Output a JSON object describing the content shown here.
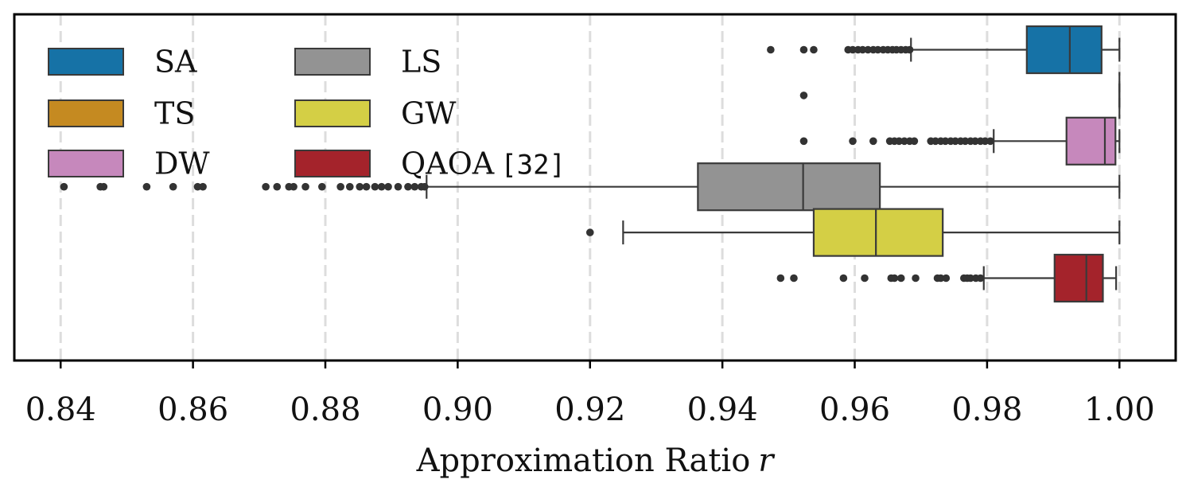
{
  "chart_data": {
    "type": "boxplot",
    "orientation": "horizontal",
    "xlabel": "Approximation Ratio",
    "xlabel_var": "r",
    "xlim": [
      0.833,
      1.0085
    ],
    "xticks": [
      0.84,
      0.86,
      0.88,
      0.9,
      0.92,
      0.94,
      0.96,
      0.98,
      1.0
    ],
    "xtick_labels": [
      "0.84",
      "0.86",
      "0.88",
      "0.90",
      "0.92",
      "0.94",
      "0.96",
      "0.98",
      "1.00"
    ],
    "grid": "vertical dashed",
    "legend_position": "top-left",
    "series": [
      {
        "name": "SA",
        "color": "#1672a6",
        "whisker_low": 0.9685,
        "q1": 0.986,
        "median": 0.9925,
        "q3": 0.9973,
        "whisker_high": 1.0,
        "outliers": [
          0.9473,
          0.9523,
          0.9538,
          0.959,
          0.9597,
          0.9605,
          0.9612,
          0.962,
          0.9628,
          0.9635,
          0.9643,
          0.965,
          0.9657,
          0.9663,
          0.967,
          0.9677,
          0.9683
        ]
      },
      {
        "name": "TS",
        "color": "#c58a21",
        "whisker_low": 1.0,
        "q1": 1.0,
        "median": 1.0,
        "q3": 1.0,
        "whisker_high": 1.0,
        "outliers": [
          0.9523
        ]
      },
      {
        "name": "DW",
        "color": "#c688bc",
        "whisker_low": 0.981,
        "q1": 0.992,
        "median": 0.9978,
        "q3": 0.9994,
        "whisker_high": 1.0,
        "outliers": [
          0.9523,
          0.9597,
          0.9628,
          0.9653,
          0.966,
          0.9667,
          0.9675,
          0.9683,
          0.969,
          0.9715,
          0.9722,
          0.973,
          0.9737,
          0.9745,
          0.9752,
          0.976,
          0.9767,
          0.9775,
          0.9782,
          0.979,
          0.9797,
          0.9805
        ]
      },
      {
        "name": "LS",
        "color": "#939393",
        "whisker_low": 0.8953,
        "q1": 0.9363,
        "median": 0.9522,
        "q3": 0.9638,
        "whisker_high": 1.0,
        "outliers": [
          0.8405,
          0.846,
          0.8465,
          0.853,
          0.857,
          0.8607,
          0.8615,
          0.871,
          0.8727,
          0.8745,
          0.8752,
          0.877,
          0.8795,
          0.8823,
          0.8837,
          0.8852,
          0.8862,
          0.8875,
          0.8885,
          0.8895,
          0.891,
          0.8925,
          0.8935,
          0.8945,
          0.895
        ]
      },
      {
        "name": "GW",
        "color": "#d4cf45",
        "whisker_low": 0.925,
        "q1": 0.9538,
        "median": 0.9632,
        "q3": 0.9733,
        "whisker_high": 1.0,
        "outliers": [
          0.92
        ]
      },
      {
        "name": "QAOA",
        "cite": "[32]",
        "color": "#a4232b",
        "whisker_low": 0.9795,
        "q1": 0.9902,
        "median": 0.995,
        "q3": 0.9975,
        "whisker_high": 0.9995,
        "outliers": [
          0.9488,
          0.9508,
          0.9583,
          0.9615,
          0.9655,
          0.966,
          0.967,
          0.9692,
          0.9725,
          0.973,
          0.9738,
          0.9765,
          0.977,
          0.9775,
          0.9783,
          0.979
        ]
      }
    ]
  }
}
